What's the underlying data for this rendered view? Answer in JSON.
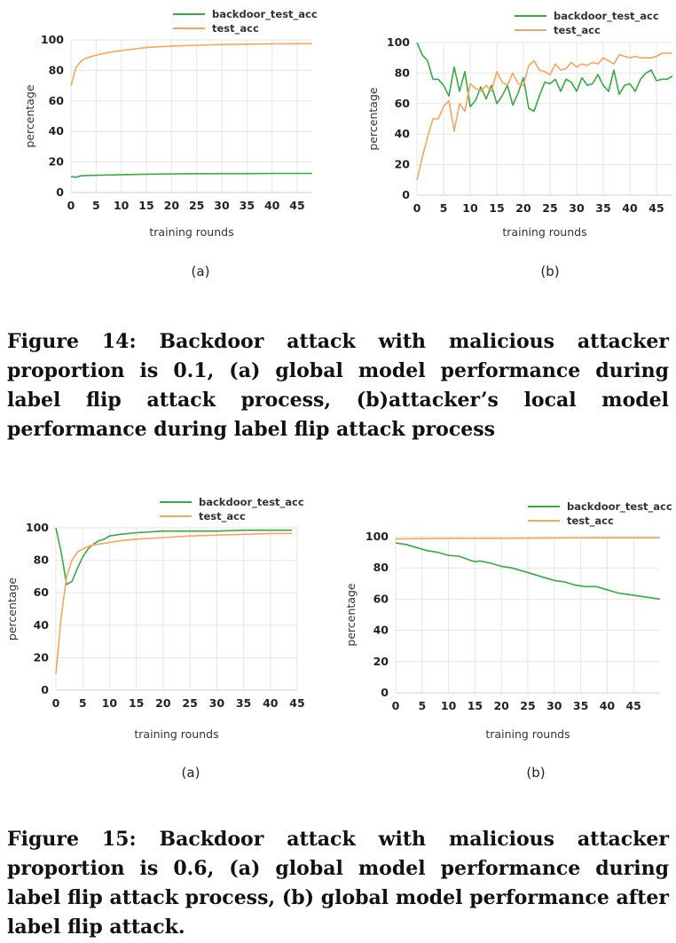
{
  "chart_data": [
    {
      "type": "line",
      "title": "",
      "xlabel": "training rounds",
      "ylabel": "percentage",
      "subcaption": "(a)",
      "xlim": [
        0,
        48
      ],
      "ylim": [
        0,
        100
      ],
      "xticks": [
        0,
        5,
        10,
        15,
        20,
        25,
        30,
        35,
        40,
        45
      ],
      "yticks": [
        0,
        20,
        40,
        60,
        80,
        100
      ],
      "grid": true,
      "legend": "top-center",
      "series": [
        {
          "name": "backdoor_test_acc",
          "color": "#3aa844",
          "x": [
            0,
            1,
            2,
            5,
            10,
            15,
            20,
            25,
            30,
            35,
            40,
            45,
            48
          ],
          "y": [
            10.5,
            10,
            11,
            11.3,
            11.7,
            12,
            12.2,
            12.3,
            12.4,
            12.4,
            12.5,
            12.5,
            12.5
          ]
        },
        {
          "name": "test_acc",
          "color": "#f5a55f",
          "x": [
            0,
            1,
            2,
            3,
            5,
            7,
            10,
            15,
            20,
            25,
            30,
            35,
            40,
            45,
            48
          ],
          "y": [
            70,
            82,
            86,
            88,
            90,
            91.5,
            93,
            95,
            96,
            96.5,
            97,
            97.2,
            97.4,
            97.5,
            97.5
          ]
        }
      ]
    },
    {
      "type": "line",
      "title": "",
      "xlabel": "training rounds",
      "ylabel": "percentage",
      "subcaption": "(b)",
      "xlim": [
        0,
        48
      ],
      "ylim": [
        0,
        100
      ],
      "xticks": [
        0,
        5,
        10,
        15,
        20,
        25,
        30,
        35,
        40,
        45
      ],
      "yticks": [
        0,
        20,
        40,
        60,
        80,
        100
      ],
      "grid": true,
      "legend": "top-center",
      "series": [
        {
          "name": "backdoor_test_acc",
          "color": "#3aa844",
          "x": [
            0,
            1,
            2,
            3,
            4,
            5,
            6,
            7,
            8,
            9,
            10,
            11,
            12,
            13,
            14,
            15,
            16,
            17,
            18,
            19,
            20,
            21,
            22,
            23,
            24,
            25,
            26,
            27,
            28,
            29,
            30,
            31,
            32,
            33,
            34,
            35,
            36,
            37,
            38,
            39,
            40,
            41,
            42,
            43,
            44,
            45,
            46,
            47,
            48
          ],
          "y": [
            100,
            92,
            88,
            76,
            76,
            72,
            65,
            84,
            68,
            81,
            58,
            62,
            71,
            63,
            72,
            60,
            65,
            72,
            59,
            67,
            77,
            57,
            55,
            65,
            74,
            73,
            76,
            68,
            76,
            74,
            68,
            77,
            72,
            73,
            79,
            72,
            68,
            82,
            66,
            72,
            73,
            68,
            76,
            80,
            82,
            75,
            76,
            76,
            78
          ]
        },
        {
          "name": "test_acc",
          "color": "#f5a55f",
          "x": [
            0,
            1,
            2,
            3,
            4,
            5,
            6,
            7,
            8,
            9,
            10,
            11,
            12,
            13,
            14,
            15,
            16,
            17,
            18,
            19,
            20,
            21,
            22,
            23,
            24,
            25,
            26,
            27,
            28,
            29,
            30,
            31,
            32,
            33,
            34,
            35,
            36,
            37,
            38,
            39,
            40,
            41,
            42,
            43,
            44,
            45,
            46,
            47,
            48
          ],
          "y": [
            10,
            25,
            38,
            50,
            50,
            58,
            62,
            42,
            60,
            55,
            73,
            70,
            68,
            72,
            68,
            81,
            74,
            72,
            80,
            73,
            72,
            85,
            88,
            82,
            81,
            79,
            86,
            82,
            83,
            87,
            84,
            86,
            85,
            87,
            86,
            90,
            88,
            86,
            92,
            91,
            90,
            91,
            90,
            90,
            90,
            91,
            93,
            93,
            93
          ]
        }
      ]
    },
    {
      "type": "line",
      "title": "",
      "xlabel": "training rounds",
      "ylabel": "percentage",
      "subcaption": "(a)",
      "xlim": [
        0,
        45
      ],
      "ylim": [
        0,
        100
      ],
      "xticks": [
        0,
        5,
        10,
        15,
        20,
        25,
        30,
        35,
        40,
        45
      ],
      "yticks": [
        0,
        20,
        40,
        60,
        80,
        100
      ],
      "grid": true,
      "legend": "top-right",
      "series": [
        {
          "name": "backdoor_test_acc",
          "color": "#3aa844",
          "x": [
            0,
            1,
            2,
            3,
            4,
            5,
            6,
            7,
            8,
            9,
            10,
            12,
            15,
            20,
            25,
            30,
            35,
            40,
            44
          ],
          "y": [
            100,
            85,
            65,
            67,
            75,
            82,
            87,
            90,
            92,
            93,
            95,
            96,
            97,
            98,
            98,
            98,
            98.5,
            98.5,
            98.5
          ]
        },
        {
          "name": "test_acc",
          "color": "#f5a55f",
          "x": [
            0,
            1,
            2,
            3,
            4,
            5,
            6,
            7,
            8,
            10,
            12,
            15,
            20,
            25,
            30,
            35,
            40,
            44
          ],
          "y": [
            10,
            45,
            70,
            80,
            85,
            87,
            88.5,
            89.5,
            90,
            91,
            92,
            93,
            94,
            95,
            95.5,
            96,
            96.5,
            96.5
          ]
        }
      ]
    },
    {
      "type": "line",
      "title": "",
      "xlabel": "training rounds",
      "ylabel": "percentage",
      "subcaption": "(b)",
      "xlim": [
        0,
        50
      ],
      "ylim": [
        0,
        100
      ],
      "xticks": [
        0,
        5,
        10,
        15,
        20,
        25,
        30,
        35,
        40,
        45
      ],
      "yticks": [
        0,
        20,
        40,
        60,
        80,
        100
      ],
      "grid": true,
      "legend": "top-right",
      "series": [
        {
          "name": "backdoor_test_acc",
          "color": "#3aa844",
          "x": [
            0,
            2,
            4,
            6,
            8,
            10,
            12,
            14,
            15,
            16,
            18,
            20,
            22,
            24,
            26,
            28,
            30,
            32,
            34,
            36,
            38,
            40,
            42,
            44,
            46,
            48,
            50
          ],
          "y": [
            96,
            95,
            93,
            91,
            90,
            88,
            87.5,
            85,
            84,
            84.5,
            83,
            81,
            80,
            78,
            76,
            74,
            72,
            71,
            69,
            68,
            68,
            66,
            64,
            63,
            62,
            61,
            60
          ]
        },
        {
          "name": "test_acc",
          "color": "#f5a55f",
          "x": [
            0,
            10,
            20,
            30,
            40,
            50
          ],
          "y": [
            98.5,
            99,
            99,
            99.2,
            99.3,
            99.3
          ]
        }
      ]
    }
  ],
  "captions": {
    "fig14": "Figure 14: Backdoor attack with malicious attacker proportion is 0.1, (a) global model performance during label flip attack process, (b)attacker’s local model performance during label flip attack process",
    "fig15": "Figure 15: Backdoor attack with malicious attacker proportion is 0.6, (a) global model performance during label flip attack process, (b) global model performance after label flip attack."
  }
}
